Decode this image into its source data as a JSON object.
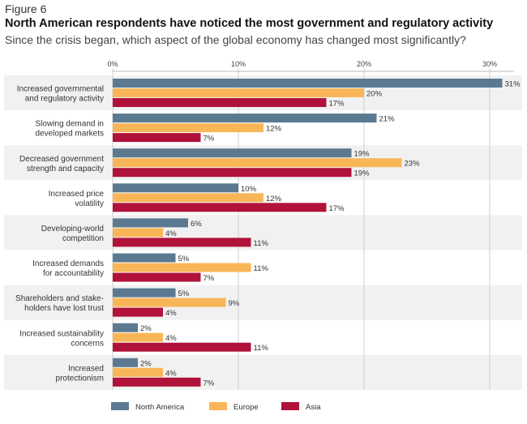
{
  "figure_label": "Figure 6",
  "title": "North American respondents have noticed the most government and regulatory activity",
  "subtitle": "Since the crisis began, which aspect of the global economy has changed most significantly?",
  "chart_data": {
    "type": "bar",
    "orientation": "horizontal",
    "title": "North American respondents have noticed the most government and regulatory activity",
    "subtitle": "Since the crisis began, which aspect of the global economy has changed most significantly?",
    "categories": [
      [
        "Increased governmental",
        "and regulatory activity"
      ],
      [
        "Slowing demand in",
        "developed markets"
      ],
      [
        "Decreased government",
        "strength and capacity"
      ],
      [
        "Increased price",
        "volatility"
      ],
      [
        "Developing-world",
        "competition"
      ],
      [
        "Increased demands",
        "for accountability"
      ],
      [
        "Shareholders and stake-",
        "holders have lost trust"
      ],
      [
        "Increased sustainability",
        "concerns"
      ],
      [
        "Increased",
        "protectionism"
      ]
    ],
    "series": [
      {
        "name": "North America",
        "color": "#5b7a91",
        "values": [
          31,
          21,
          19,
          10,
          6,
          5,
          5,
          2,
          2
        ]
      },
      {
        "name": "Europe",
        "color": "#f9b658",
        "values": [
          20,
          12,
          23,
          12,
          4,
          11,
          9,
          4,
          4
        ]
      },
      {
        "name": "Asia",
        "color": "#b0123a",
        "values": [
          17,
          7,
          19,
          17,
          11,
          7,
          4,
          11,
          7
        ]
      }
    ],
    "x_ticks": [
      "0%",
      "10%",
      "20%",
      "30%"
    ],
    "xlim": [
      0,
      32
    ],
    "value_suffix": "%",
    "grid": true,
    "row_shading": "alternating",
    "legend_position": "bottom"
  }
}
